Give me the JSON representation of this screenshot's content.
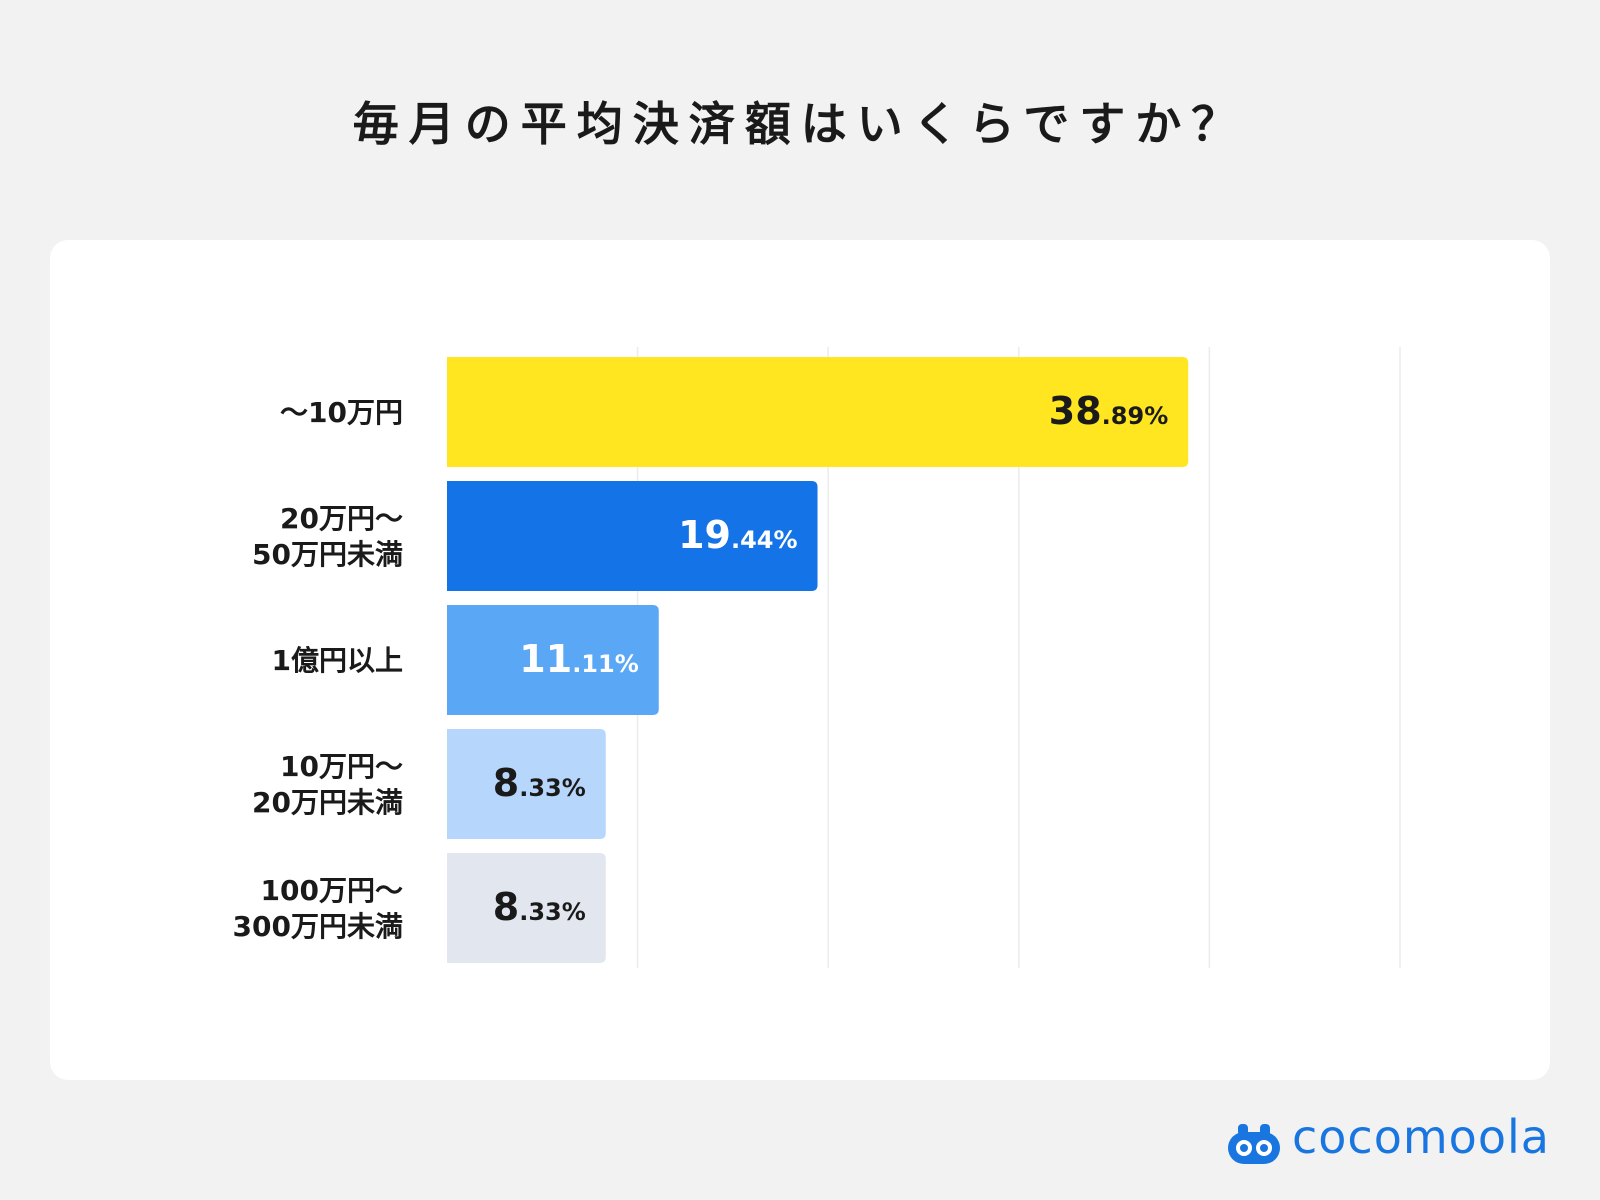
{
  "title": "毎月の平均決済額はいくらですか？",
  "brand": {
    "name": "cocomoola",
    "color": "#1976e0",
    "logo_icon": "cocomoola-logo-icon"
  },
  "chart_data": {
    "type": "bar",
    "orientation": "horizontal",
    "title": "毎月の平均決済額はいくらですか？",
    "unit": "%",
    "xlim": [
      0,
      50
    ],
    "grid": true,
    "categories": [
      "～10万円",
      "20万円～\n50万円未満",
      "1億円以上",
      "10万円～\n20万円未満",
      "100万円～\n300万円未満"
    ],
    "values": [
      38.89,
      19.44,
      11.11,
      8.33,
      8.33
    ],
    "colors": [
      "#ffe620",
      "#1473e6",
      "#5aa8f5",
      "#b6d6fb",
      "#e2e7ef"
    ],
    "label_colors": [
      "#1a1a1a",
      "#ffffff",
      "#ffffff",
      "#1a1a1a",
      "#1a1a1a"
    ]
  }
}
